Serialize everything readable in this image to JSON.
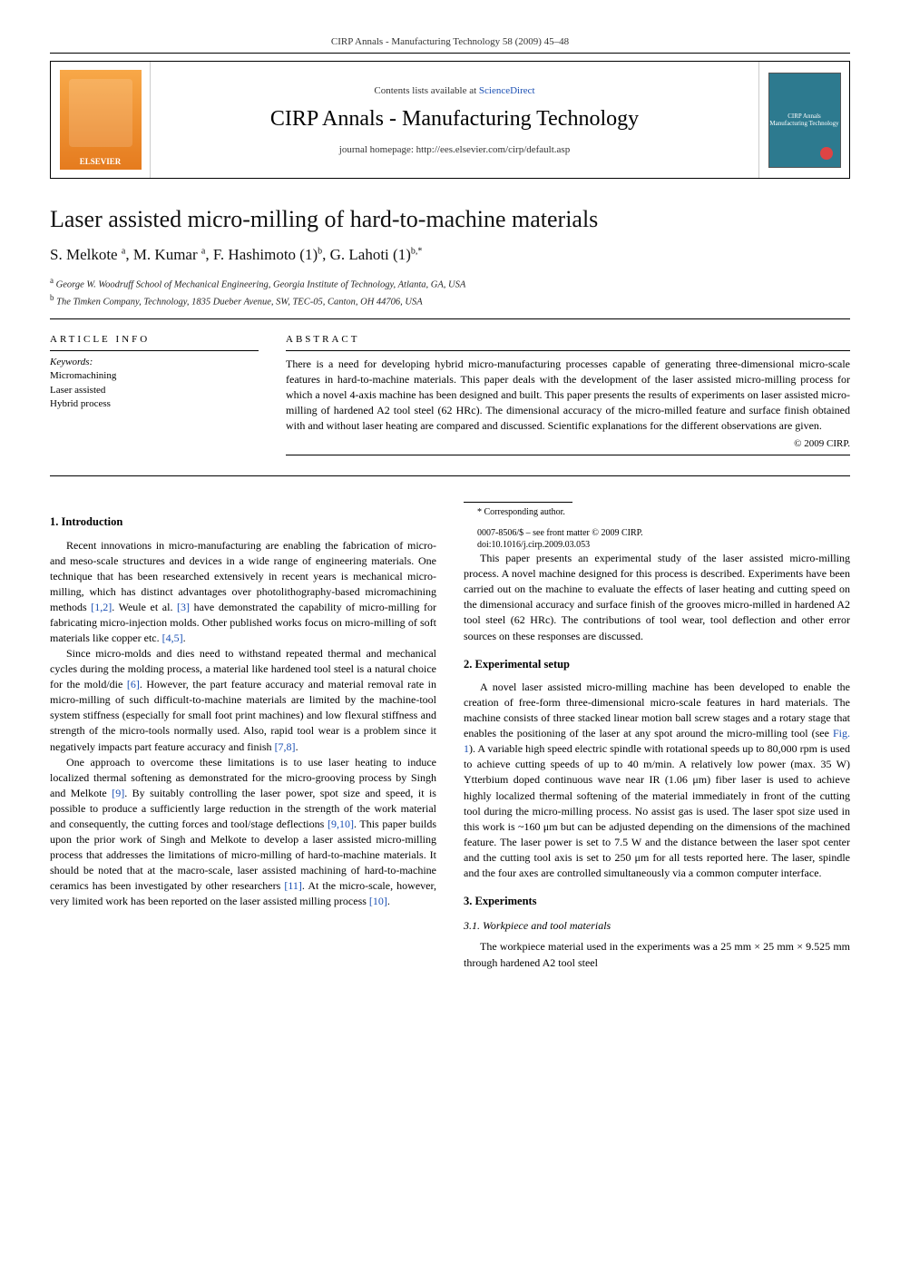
{
  "running_header": "CIRP Annals - Manufacturing Technology 58 (2009) 45–48",
  "masthead": {
    "publisher_logo_text": "ELSEVIER",
    "contents_prefix": "Contents lists available at ",
    "contents_link": "ScienceDirect",
    "journal_title": "CIRP Annals - Manufacturing Technology",
    "homepage_line": "journal homepage: http://ees.elsevier.com/cirp/default.asp",
    "cover_text_top": "CIRP Annals",
    "cover_text_bottom": "Manufacturing Technology"
  },
  "article": {
    "title": "Laser assisted micro-milling of hard-to-machine materials",
    "authors_html": "S. Melkote <sup>a</sup>, M. Kumar <sup>a</sup>, F. Hashimoto (1)<sup>b</sup>, G. Lahoti (1)<sup>b,*</sup>",
    "affiliations": [
      "George W. Woodruff School of Mechanical Engineering, Georgia Institute of Technology, Atlanta, GA, USA",
      "The Timken Company, Technology, 1835 Dueber Avenue, SW, TEC-05, Canton, OH 44706, USA"
    ],
    "aff_markers": [
      "a",
      "b"
    ]
  },
  "info": {
    "heading": "ARTICLE INFO",
    "keywords_label": "Keywords:",
    "keywords": [
      "Micromachining",
      "Laser assisted",
      "Hybrid process"
    ]
  },
  "abstract": {
    "heading": "ABSTRACT",
    "text": "There is a need for developing hybrid micro-manufacturing processes capable of generating three-dimensional micro-scale features in hard-to-machine materials. This paper deals with the development of the laser assisted micro-milling process for which a novel 4-axis machine has been designed and built. This paper presents the results of experiments on laser assisted micro-milling of hardened A2 tool steel (62 HRc). The dimensional accuracy of the micro-milled feature and surface finish obtained with and without laser heating are compared and discussed. Scientific explanations for the different observations are given.",
    "copyright": "© 2009 CIRP."
  },
  "sections": {
    "s1_title": "1. Introduction",
    "s1_p1": "Recent innovations in micro-manufacturing are enabling the fabrication of micro- and meso-scale structures and devices in a wide range of engineering materials. One technique that has been researched extensively in recent years is mechanical micro-milling, which has distinct advantages over photolithography-based micromachining methods [1,2]. Weule et al. [3] have demonstrated the capability of micro-milling for fabricating micro-injection molds. Other published works focus on micro-milling of soft materials like copper etc. [4,5].",
    "s1_p2": "Since micro-molds and dies need to withstand repeated thermal and mechanical cycles during the molding process, a material like hardened tool steel is a natural choice for the mold/die [6]. However, the part feature accuracy and material removal rate in micro-milling of such difficult-to-machine materials are limited by the machine-tool system stiffness (especially for small foot print machines) and low flexural stiffness and strength of the micro-tools normally used. Also, rapid tool wear is a problem since it negatively impacts part feature accuracy and finish [7,8].",
    "s1_p3": "One approach to overcome these limitations is to use laser heating to induce localized thermal softening as demonstrated for the micro-grooving process by Singh and Melkote [9]. By suitably controlling the laser power, spot size and speed, it is possible to produce a sufficiently large reduction in the strength of the work material and consequently, the cutting forces and tool/stage deflections [9,10]. This paper builds upon the prior work of Singh and Melkote to develop a laser assisted micro-milling process that addresses the limitations of micro-milling of hard-to-machine materials. It should be noted that at the macro-scale, laser assisted machining of hard-to-machine ceramics has been investigated by other researchers [11]. At the micro-scale, however, very limited work has been reported on the laser assisted milling process [10].",
    "s1_p4": "This paper presents an experimental study of the laser assisted micro-milling process. A novel machine designed for this process is described. Experiments have been carried out on the machine to evaluate the effects of laser heating and cutting speed on the dimensional accuracy and surface finish of the grooves micro-milled in hardened A2 tool steel (62 HRc). The contributions of tool wear, tool deflection and other error sources on these responses are discussed.",
    "s2_title": "2. Experimental setup",
    "s2_p1": "A novel laser assisted micro-milling machine has been developed to enable the creation of free-form three-dimensional micro-scale features in hard materials. The machine consists of three stacked linear motion ball screw stages and a rotary stage that enables the positioning of the laser at any spot around the micro-milling tool (see Fig. 1). A variable high speed electric spindle with rotational speeds up to 80,000 rpm is used to achieve cutting speeds of up to 40 m/min. A relatively low power (max. 35 W) Ytterbium doped continuous wave near IR (1.06 μm) fiber laser is used to achieve highly localized thermal softening of the material immediately in front of the cutting tool during the micro-milling process. No assist gas is used. The laser spot size used in this work is ~160 μm but can be adjusted depending on the dimensions of the machined feature. The laser power is set to 7.5 W and the distance between the laser spot center and the cutting tool axis is set to 250 μm for all tests reported here. The laser, spindle and the four axes are controlled simultaneously via a common computer interface.",
    "s3_title": "3. Experiments",
    "s3_1_title": "3.1. Workpiece and tool materials",
    "s3_1_p1": "The workpiece material used in the experiments was a 25 mm × 25 mm × 9.525 mm through hardened A2 tool steel"
  },
  "footnote": {
    "marker": "*",
    "text": "Corresponding author."
  },
  "footer": {
    "issn_line": "0007-8506/$ – see front matter © 2009 CIRP.",
    "doi_line": "doi:10.1016/j.cirp.2009.03.053"
  },
  "refs": {
    "r12": "[1,2]",
    "r3": "[3]",
    "r45": "[4,5]",
    "r6": "[6]",
    "r78": "[7,8]",
    "r9": "[9]",
    "r910": "[9,10]",
    "r11": "[11]",
    "r10": "[10]",
    "fig1": "Fig. 1"
  },
  "colors": {
    "link": "#1a4fb3",
    "elsevier_top": "#f8a848",
    "elsevier_bottom": "#e57b1e",
    "cover": "#2d7a8f"
  }
}
